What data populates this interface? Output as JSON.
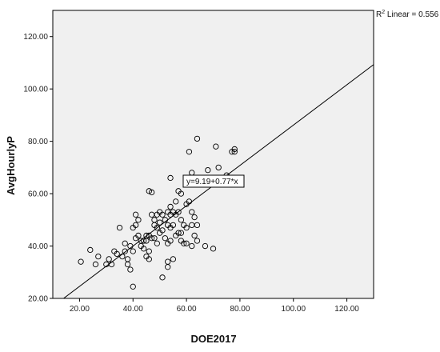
{
  "chart_data": {
    "type": "scatter",
    "xlabel": "DOE2017",
    "ylabel": "AvgHourlyP",
    "xlim": [
      10,
      130
    ],
    "ylim": [
      20,
      130
    ],
    "xticks": [
      "20.00",
      "40.00",
      "60.00",
      "80.00",
      "100.00",
      "120.00"
    ],
    "xtick_values": [
      20,
      40,
      60,
      80,
      100,
      120
    ],
    "yticks": [
      "20.00",
      "40.00",
      "60.00",
      "80.00",
      "100.00",
      "120.00"
    ],
    "ytick_values": [
      20,
      40,
      60,
      80,
      100,
      120
    ],
    "r2_label_prefix": "R",
    "r2_label_sup": "2",
    "r2_label_suffix": " Linear = 0.556",
    "r2": 0.556,
    "equation_label": "y=9.19+0.77*x",
    "fit": {
      "intercept": 9.19,
      "slope": 0.77
    },
    "grid": false,
    "colors": {
      "plot_bg": "#f0f0f0",
      "marker": "#000000",
      "line": "#000000"
    },
    "points": [
      [
        20.5,
        34
      ],
      [
        24,
        38.5
      ],
      [
        26,
        33
      ],
      [
        27,
        36
      ],
      [
        30,
        33
      ],
      [
        31,
        35
      ],
      [
        32,
        33
      ],
      [
        33,
        38
      ],
      [
        34,
        37
      ],
      [
        35,
        47
      ],
      [
        36,
        36
      ],
      [
        37,
        41
      ],
      [
        37,
        38
      ],
      [
        38,
        35
      ],
      [
        38,
        33
      ],
      [
        39,
        31
      ],
      [
        39,
        40
      ],
      [
        40,
        24.5
      ],
      [
        40,
        47
      ],
      [
        40,
        38
      ],
      [
        41,
        52
      ],
      [
        41,
        48
      ],
      [
        41,
        43
      ],
      [
        42,
        50
      ],
      [
        42,
        44
      ],
      [
        43,
        42
      ],
      [
        43,
        40
      ],
      [
        44,
        42
      ],
      [
        44,
        39
      ],
      [
        45,
        36
      ],
      [
        45,
        42
      ],
      [
        45,
        44
      ],
      [
        46,
        61
      ],
      [
        46,
        44
      ],
      [
        46,
        38
      ],
      [
        46,
        35
      ],
      [
        47,
        60.5
      ],
      [
        47,
        52
      ],
      [
        47,
        43
      ],
      [
        48,
        50
      ],
      [
        48,
        43
      ],
      [
        48,
        48
      ],
      [
        49,
        52
      ],
      [
        49,
        47
      ],
      [
        49,
        41
      ],
      [
        50,
        53
      ],
      [
        50,
        49
      ],
      [
        50,
        45
      ],
      [
        51,
        52
      ],
      [
        51,
        46
      ],
      [
        51,
        28
      ],
      [
        52,
        50
      ],
      [
        52,
        43
      ],
      [
        53,
        53
      ],
      [
        53,
        48
      ],
      [
        53,
        41
      ],
      [
        53,
        34
      ],
      [
        53,
        32
      ],
      [
        54,
        66
      ],
      [
        54,
        55
      ],
      [
        54,
        52
      ],
      [
        54,
        47
      ],
      [
        54,
        42
      ],
      [
        55,
        53
      ],
      [
        55,
        48
      ],
      [
        55,
        35
      ],
      [
        56,
        57
      ],
      [
        56,
        52
      ],
      [
        56,
        44
      ],
      [
        57,
        61
      ],
      [
        57,
        53
      ],
      [
        57,
        45
      ],
      [
        58,
        60
      ],
      [
        58,
        50
      ],
      [
        58,
        45
      ],
      [
        58,
        42
      ],
      [
        59,
        48
      ],
      [
        59,
        41
      ],
      [
        60,
        56
      ],
      [
        60,
        47
      ],
      [
        60,
        41
      ],
      [
        61,
        76
      ],
      [
        61,
        57
      ],
      [
        62,
        68
      ],
      [
        62,
        53
      ],
      [
        62,
        48
      ],
      [
        62,
        40
      ],
      [
        63,
        51
      ],
      [
        63,
        44
      ],
      [
        64,
        81
      ],
      [
        64,
        48
      ],
      [
        64,
        42
      ],
      [
        67,
        40
      ],
      [
        68,
        69
      ],
      [
        70,
        39
      ],
      [
        71,
        78
      ],
      [
        72,
        70
      ],
      [
        75,
        67
      ],
      [
        77,
        76
      ],
      [
        78,
        77
      ],
      [
        78,
        76
      ]
    ]
  }
}
